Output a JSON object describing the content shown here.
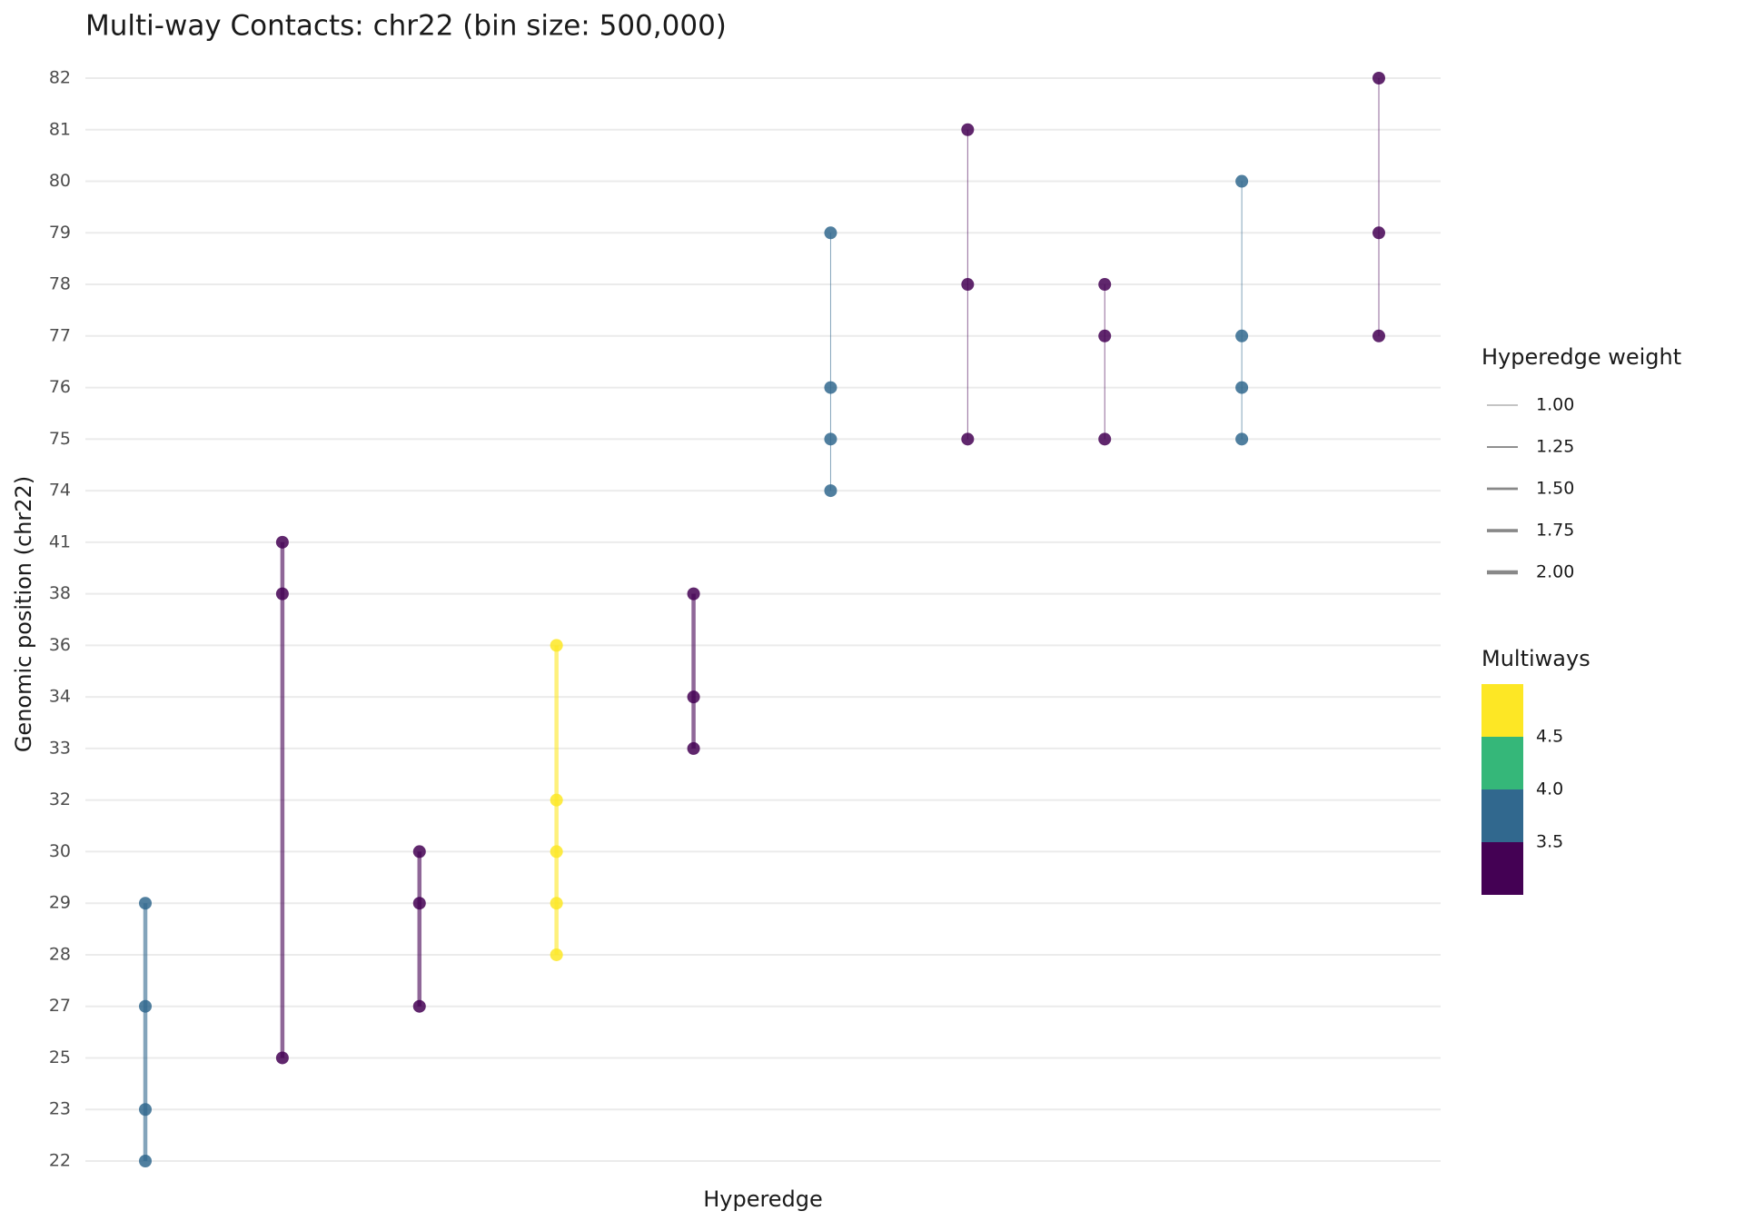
{
  "chart_data": {
    "type": "hyperedge",
    "title": "Multi-way Contacts: chr22 (bin size: 500,000)",
    "x_label": "Hyperedge",
    "y_label": "Genomic position (chr22)",
    "ycategories": [
      22,
      23,
      25,
      27,
      28,
      29,
      30,
      32,
      33,
      34,
      36,
      38,
      41,
      74,
      75,
      76,
      77,
      78,
      79,
      80,
      81,
      82
    ],
    "grid": true,
    "hyperedges": [
      {
        "values": [
          22,
          23,
          27,
          29
        ],
        "weight": 2,
        "multiways": 4
      },
      {
        "values": [
          25,
          38,
          41
        ],
        "weight": 2,
        "multiways": 3
      },
      {
        "values": [
          27,
          29,
          30
        ],
        "weight": 2,
        "multiways": 3
      },
      {
        "values": [
          28,
          29,
          30,
          32,
          36
        ],
        "weight": 2,
        "multiways": 5
      },
      {
        "values": [
          33,
          34,
          38
        ],
        "weight": 2,
        "multiways": 3
      },
      {
        "values": [
          74,
          75,
          76,
          79
        ],
        "weight": 1,
        "multiways": 4
      },
      {
        "values": [
          75,
          78,
          81
        ],
        "weight": 1,
        "multiways": 3
      },
      {
        "values": [
          75,
          77,
          78
        ],
        "weight": 1,
        "multiways": 3
      },
      {
        "values": [
          75,
          76,
          77,
          80
        ],
        "weight": 1,
        "multiways": 4
      },
      {
        "values": [
          77,
          79,
          82
        ],
        "weight": 1,
        "multiways": 3
      }
    ],
    "weight_legend": {
      "title": "Hyperedge weight",
      "ticks": [
        {
          "value": 1,
          "label": "1.00"
        },
        1.25,
        {
          "value": 1.5,
          "label": "1.50"
        },
        1.75,
        {
          "value": 2,
          "label": "2.00"
        }
      ]
    },
    "multiways_legend": {
      "title": "Multiways",
      "lim": [
        3,
        5
      ],
      "ticks": [
        3.5,
        {
          "value": 4,
          "label": "4.0"
        },
        4.5
      ],
      "colors": [
        "#440154",
        "#31688e",
        "#35b779",
        "#fde725"
      ]
    }
  }
}
